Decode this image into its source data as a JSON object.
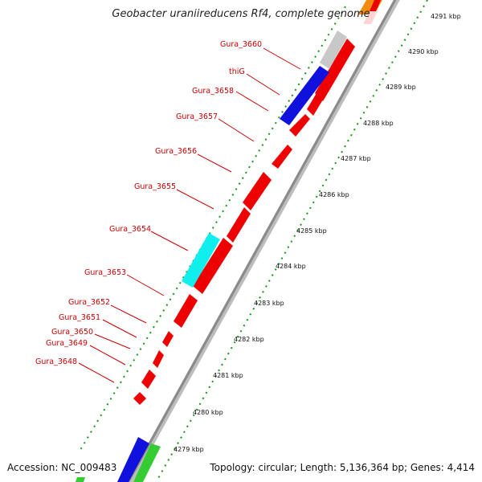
{
  "title": "Geobacter uraniireducens Rf4, complete genome",
  "accession": "Accession: NC_009483",
  "summary": "Topology: circular; Length: 5,136,364 bp; Genes: 4,414",
  "colors": {
    "gene_forward": "#ee0000",
    "gene_blue": "#1111dd",
    "gene_cyan": "#11eeee",
    "gene_grey": "#c8c8c8",
    "gene_green": "#33cc33",
    "gene_orange": "#f28c0f",
    "gene_pink": "#ffd4d4",
    "backbone": "#9a9a9a",
    "dots": "#119911",
    "label": "#cc0000"
  },
  "gene_labels": [
    "Gura_3660",
    "thiG",
    "Gura_3658",
    "Gura_3657",
    "Gura_3656",
    "Gura_3655",
    "Gura_3654",
    "Gura_3653",
    "Gura_3652",
    "Gura_3651",
    "Gura_3650",
    "Gura_3649",
    "Gura_3648"
  ],
  "kbp_ticks": [
    "4291 kbp",
    "4290 kbp",
    "4289 kbp",
    "4288 kbp",
    "4287 kbp",
    "4286 kbp",
    "4285 kbp",
    "4284 kbp",
    "4283 kbp",
    "4282 kbp",
    "4281 kbp",
    "4280 kbp",
    "4279 kbp"
  ]
}
